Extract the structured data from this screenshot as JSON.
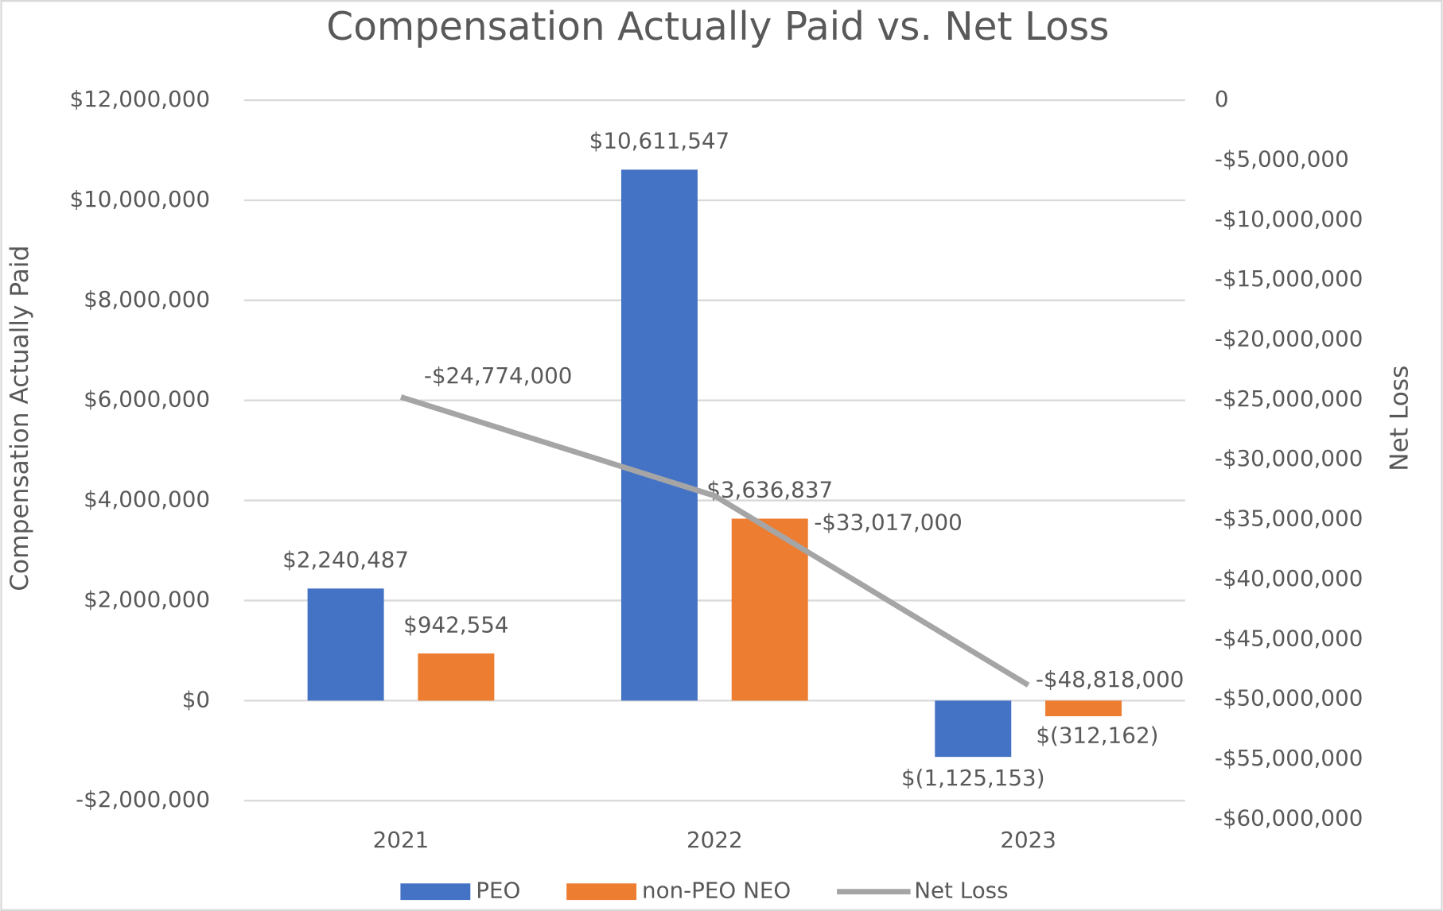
{
  "chart_data": {
    "type": "bar",
    "title": "Compensation Actually Paid vs. Net Loss",
    "y_label": "Compensation Actually Paid",
    "y2_label": "Net Loss",
    "categories": [
      "2021",
      "2022",
      "2023"
    ],
    "series": [
      {
        "name": "PEO",
        "type": "bar",
        "color": "#4472c4",
        "values": [
          2240487,
          10611547,
          -1125153
        ],
        "value_labels": [
          "$2,240,487",
          "$10,611,547",
          "$(1,125,153)"
        ]
      },
      {
        "name": "non-PEO NEO",
        "type": "bar",
        "color": "#ed7d31",
        "values": [
          942554,
          3636837,
          -312162
        ],
        "value_labels": [
          "$942,554",
          "$3,636,837",
          "$(312,162)"
        ]
      },
      {
        "name": "Net Loss",
        "type": "line",
        "axis": "y2",
        "color": "#a5a5a5",
        "values": [
          -24774000,
          -33017000,
          -48818000
        ],
        "value_labels": [
          "-$24,774,000",
          "-$33,017,000",
          "-$48,818,000"
        ]
      }
    ],
    "ylim": [
      -2000000,
      12000000
    ],
    "yticks": [
      {
        "value": -2000000,
        "label": "-$2,000,000"
      },
      {
        "value": 0,
        "label": "$0"
      },
      {
        "value": 2000000,
        "label": "$2,000,000"
      },
      {
        "value": 4000000,
        "label": "$4,000,000"
      },
      {
        "value": 6000000,
        "label": "$6,000,000"
      },
      {
        "value": 8000000,
        "label": "$8,000,000"
      },
      {
        "value": 10000000,
        "label": "$10,000,000"
      },
      {
        "value": 12000000,
        "label": "$12,000,000"
      }
    ],
    "y2lim": [
      -60000000,
      0
    ],
    "y2ticks": [
      {
        "value": -60000000,
        "label": "-$60,000,000"
      },
      {
        "value": -55000000,
        "label": "-$55,000,000"
      },
      {
        "value": -50000000,
        "label": "-$50,000,000"
      },
      {
        "value": -45000000,
        "label": "-$45,000,000"
      },
      {
        "value": -40000000,
        "label": "-$40,000,000"
      },
      {
        "value": -35000000,
        "label": "-$35,000,000"
      },
      {
        "value": -30000000,
        "label": "-$30,000,000"
      },
      {
        "value": -25000000,
        "label": "-$25,000,000"
      },
      {
        "value": -20000000,
        "label": "-$20,000,000"
      },
      {
        "value": -15000000,
        "label": "-$15,000,000"
      },
      {
        "value": -10000000,
        "label": "-$10,000,000"
      },
      {
        "value": -5000000,
        "label": "-$5,000,000"
      },
      0
    ],
    "grid": true,
    "legend": "bottom"
  }
}
